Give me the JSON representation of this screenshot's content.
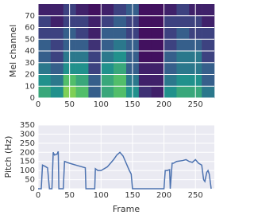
{
  "chart_data": [
    {
      "type": "heatmap",
      "ylabel": "Mel channel",
      "colormap": "viridis",
      "grid": true,
      "x_edges": [
        0,
        20,
        40,
        60,
        80,
        100,
        120,
        140,
        160,
        180,
        200,
        220,
        240,
        260,
        280
      ],
      "y_edges": [
        0,
        10,
        20,
        30,
        40,
        50,
        60,
        70,
        80
      ],
      "z": [
        [
          0.6,
          0.5,
          0.8,
          0.7,
          0.3,
          0.6,
          0.7,
          0.5,
          0.15,
          0.1,
          0.5,
          0.6,
          0.6,
          0.4
        ],
        [
          0.5,
          0.4,
          0.7,
          0.6,
          0.3,
          0.6,
          0.7,
          0.4,
          0.1,
          0.1,
          0.4,
          0.5,
          0.5,
          0.3
        ],
        [
          0.4,
          0.3,
          0.5,
          0.5,
          0.2,
          0.5,
          0.6,
          0.3,
          0.1,
          0.1,
          0.3,
          0.4,
          0.4,
          0.3
        ],
        [
          0.3,
          0.2,
          0.4,
          0.4,
          0.2,
          0.4,
          0.5,
          0.3,
          0.05,
          0.05,
          0.3,
          0.4,
          0.4,
          0.2
        ],
        [
          0.3,
          0.2,
          0.3,
          0.3,
          0.15,
          0.3,
          0.4,
          0.3,
          0.05,
          0.05,
          0.2,
          0.3,
          0.3,
          0.2
        ],
        [
          0.2,
          0.2,
          0.3,
          0.2,
          0.1,
          0.3,
          0.3,
          0.2,
          0.05,
          0.05,
          0.2,
          0.3,
          0.2,
          0.2
        ],
        [
          0.2,
          0.1,
          0.2,
          0.2,
          0.1,
          0.2,
          0.3,
          0.2,
          0.05,
          0.05,
          0.2,
          0.2,
          0.2,
          0.1
        ],
        [
          0.1,
          0.1,
          0.2,
          0.1,
          0.05,
          0.1,
          0.2,
          0.3,
          0.05,
          0.05,
          0.1,
          0.2,
          0.1,
          0.1
        ]
      ],
      "xlim": [
        0,
        280
      ],
      "ylim": [
        0,
        80
      ],
      "xticks": [
        0,
        50,
        100,
        150,
        200,
        250
      ],
      "yticks": [
        0,
        10,
        20,
        30,
        40,
        50,
        60,
        70
      ]
    },
    {
      "type": "line",
      "ylabel": "Pitch (Hz)",
      "xlabel": "Frame",
      "color": "#4c72b0",
      "grid": true,
      "x": [
        0,
        5,
        7,
        10,
        15,
        18,
        20,
        22,
        24,
        26,
        30,
        32,
        33,
        40,
        42,
        50,
        60,
        70,
        75,
        76,
        90,
        91,
        95,
        100,
        110,
        120,
        125,
        130,
        135,
        140,
        145,
        148,
        150,
        200,
        202,
        205,
        209,
        210,
        213,
        215,
        220,
        230,
        235,
        240,
        245,
        250,
        255,
        260,
        263,
        265,
        268,
        270,
        272,
        275
      ],
      "values": [
        0,
        0,
        130,
        125,
        115,
        0,
        0,
        0,
        200,
        185,
        190,
        205,
        0,
        0,
        150,
        140,
        130,
        120,
        115,
        0,
        0,
        110,
        100,
        100,
        120,
        160,
        185,
        200,
        180,
        140,
        100,
        80,
        0,
        0,
        100,
        100,
        105,
        0,
        140,
        140,
        150,
        155,
        160,
        150,
        145,
        160,
        140,
        130,
        50,
        40,
        90,
        100,
        80,
        0
      ],
      "xlim": [
        0,
        280
      ],
      "ylim": [
        0,
        350
      ],
      "xticks": [
        0,
        50,
        100,
        150,
        200,
        250
      ],
      "yticks": [
        0,
        50,
        100,
        150,
        200,
        250,
        300,
        350
      ]
    }
  ]
}
